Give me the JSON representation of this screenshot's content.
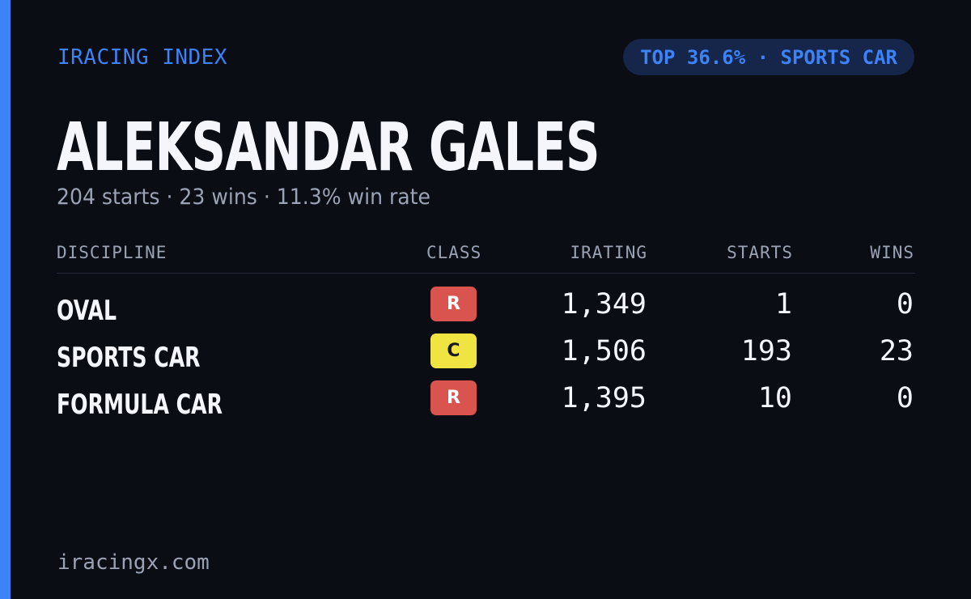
{
  "brand": "IRACING INDEX",
  "percentile_badge": "TOP 36.6% · SPORTS CAR",
  "driver": {
    "name": "ALEKSANDAR GALES",
    "summary": "204 starts · 23 wins · 11.3% win rate"
  },
  "table": {
    "headers": {
      "discipline": "DISCIPLINE",
      "class": "CLASS",
      "irating": "IRATING",
      "starts": "STARTS",
      "wins": "WINS"
    },
    "rows": [
      {
        "discipline": "OVAL",
        "class": "R",
        "class_color": "#d9534f",
        "class_text_color": "#ffffff",
        "irating": "1,349",
        "starts": "1",
        "wins": "0"
      },
      {
        "discipline": "SPORTS CAR",
        "class": "C",
        "class_color": "#f0e442",
        "class_text_color": "#1a1a1a",
        "irating": "1,506",
        "starts": "193",
        "wins": "23"
      },
      {
        "discipline": "FORMULA CAR",
        "class": "R",
        "class_color": "#d9534f",
        "class_text_color": "#ffffff",
        "irating": "1,395",
        "starts": "10",
        "wins": "0"
      }
    ]
  },
  "footer": "iracingx.com",
  "colors": {
    "accent": "#3d82f7",
    "background": "#0a0d14",
    "badge_background": "#15264a",
    "muted_text": "#9aa3b5"
  }
}
